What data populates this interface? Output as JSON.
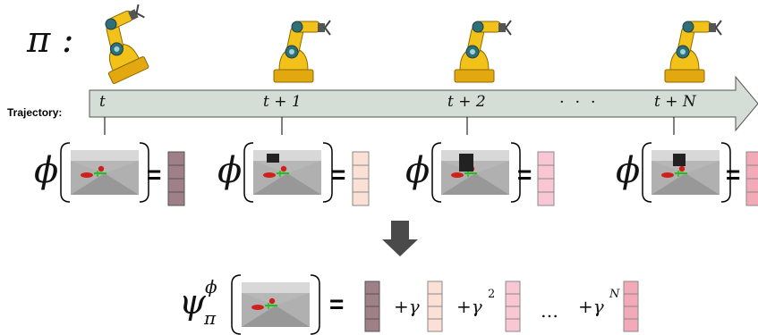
{
  "policy_symbol": "π :",
  "trajectory_label": "Trajectory:",
  "timesteps": [
    "t",
    "t + 1",
    "t + 2",
    "t + N"
  ],
  "ellipsis": "· · ·",
  "phi": "ϕ",
  "equals": "=",
  "psi_base": "ψ",
  "psi_sub": "π",
  "psi_sup": "ϕ",
  "sum_terms": [
    "+γ",
    "+γ",
    "2",
    "+γ",
    "N"
  ],
  "sum_dots": "…",
  "colors": {
    "arrow_fill": "#d4ddd6",
    "arrow_stroke": "#555555",
    "feature_0": "#a08088",
    "feature_1": "#fbe0d6",
    "feature_2": "#f8c7d3",
    "feature_3": "#f3aab8",
    "down_arrow": "#4a4a4a",
    "robot_yellow": "#f2c21a"
  }
}
